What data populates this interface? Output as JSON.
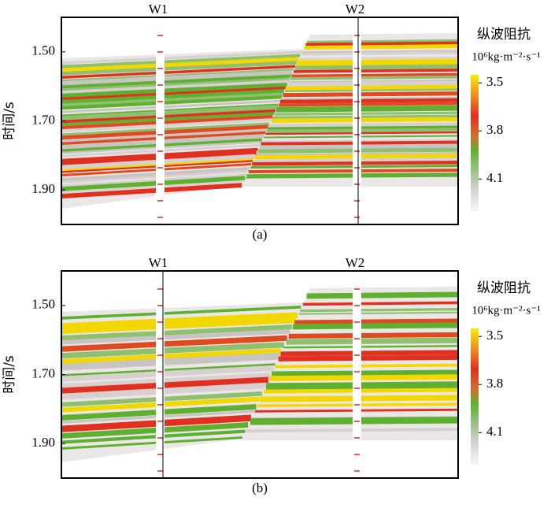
{
  "chart_data": [
    {
      "type": "section",
      "caption": "(a)",
      "wells": [
        "W1",
        "W2"
      ],
      "ylabel": "时间/s",
      "ylim": [
        1.4,
        2.0
      ],
      "yticks": [
        {
          "value": 1.5,
          "label": "1.50"
        },
        {
          "value": 1.7,
          "label": "1.70"
        },
        {
          "value": 1.9,
          "label": "1.90"
        }
      ],
      "colorbar_title": "纵波阻抗",
      "colorbar_unit": "10⁶kg·m⁻²·s⁻¹",
      "clim": [
        3.45,
        4.3
      ],
      "cticks": [
        3.5,
        3.8,
        4.1
      ]
    },
    {
      "type": "section",
      "caption": "(b)",
      "wells": [
        "W1",
        "W2"
      ],
      "ylabel": "时间/s",
      "ylim": [
        1.4,
        2.0
      ],
      "yticks": [
        {
          "value": 1.5,
          "label": "1.50"
        },
        {
          "value": 1.7,
          "label": "1.70"
        },
        {
          "value": 1.9,
          "label": "1.90"
        }
      ],
      "colorbar_title": "纵波阻抗",
      "colorbar_unit": "10⁶kg·m⁻²·s⁻¹",
      "clim": [
        3.45,
        4.3
      ],
      "cticks": [
        3.5,
        3.8,
        4.1
      ]
    }
  ]
}
